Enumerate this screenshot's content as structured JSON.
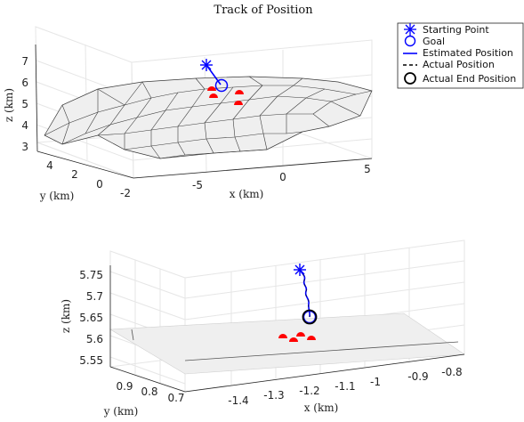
{
  "chart_data": [
    {
      "type": "line3d",
      "title": "Track of Position",
      "xlabel": "x (km)",
      "ylabel": "y (km)",
      "zlabel": "z (km)",
      "x_ticks": [
        "-5",
        "0",
        "5"
      ],
      "y_ticks": [
        "4",
        "2",
        "0",
        "-2"
      ],
      "z_ticks": [
        "7",
        "6",
        "5",
        "4",
        "3"
      ],
      "xlim": [
        -8,
        5
      ],
      "ylim": [
        -2,
        5
      ],
      "zlim": [
        2.5,
        7.5
      ],
      "surface": "triangulated terrain mesh",
      "starting_point": {
        "x": -3.4,
        "y": 1.0,
        "z": 6.9
      },
      "goal": {
        "x": -2.6,
        "y": 1.0,
        "z": 6.0
      },
      "markers": [
        {
          "x": -3.3,
          "y": 1.5,
          "z": 6.0
        },
        {
          "x": -3.5,
          "y": 1.2,
          "z": 5.6
        },
        {
          "x": -1.6,
          "y": 1.3,
          "z": 5.8
        },
        {
          "x": -1.7,
          "y": 1.0,
          "z": 5.4
        }
      ],
      "grid": true,
      "legend": {
        "position": "top-right",
        "entries": [
          {
            "label": "Starting Point",
            "symbol": "star",
            "color": "#0000ff"
          },
          {
            "label": "Goal",
            "symbol": "circle",
            "color": "#0000ff"
          },
          {
            "label": "Estimated Position",
            "symbol": "solid-line",
            "color": "#0000ff"
          },
          {
            "label": "Actual Position",
            "symbol": "dashed-line",
            "color": "#000000"
          },
          {
            "label": "Actual End Position",
            "symbol": "circle",
            "color": "#000000"
          }
        ]
      }
    },
    {
      "type": "line3d",
      "title": "",
      "xlabel": "x (km)",
      "ylabel": "y (km)",
      "zlabel": "z (km)",
      "x_ticks": [
        "-1.4",
        "-1.3",
        "-1.2",
        "-1.1",
        "-1",
        "-0.9",
        "-0.8"
      ],
      "y_ticks": [
        "0.9",
        "0.8",
        "0.7"
      ],
      "z_ticks": [
        "5.75",
        "5.7",
        "5.65",
        "5.6",
        "5.55"
      ],
      "xlim": [
        -1.45,
        -0.8
      ],
      "ylim": [
        0.65,
        0.95
      ],
      "zlim": [
        5.53,
        5.78
      ],
      "surface": "flat terrain patch",
      "starting_point": {
        "x": -1.22,
        "y": 0.83,
        "z": 5.75
      },
      "estimated_end": {
        "x": -1.2,
        "y": 0.83,
        "z": 5.65
      },
      "markers": [
        {
          "x": -1.25,
          "y": 0.85,
          "z": 5.612
        },
        {
          "x": -1.22,
          "y": 0.84,
          "z": 5.612
        },
        {
          "x": -1.24,
          "y": 0.82,
          "z": 5.606
        },
        {
          "x": -1.19,
          "y": 0.83,
          "z": 5.61
        }
      ],
      "grid": true
    }
  ],
  "colors": {
    "estimated": "#0000ff",
    "actual": "#000000",
    "marker": "#ff0000",
    "surface": "#efefef",
    "mesh": "#3a3a3a",
    "grid": "#e6e6e6"
  }
}
